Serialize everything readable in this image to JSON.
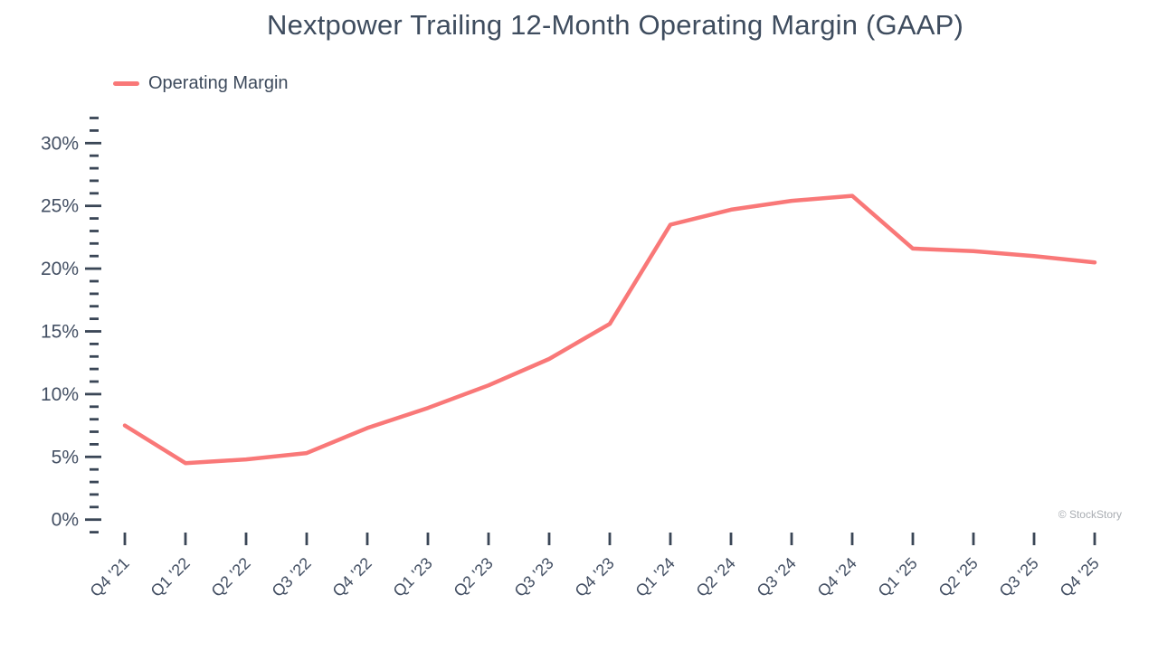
{
  "title": "Nextpower Trailing 12-Month Operating Margin (GAAP)",
  "legend": {
    "label": "Operating Margin"
  },
  "watermark": "© StockStory",
  "colors": {
    "line": "#f97878",
    "tick": "#3a4656",
    "axis_text": "#434f63",
    "watermark": "#a9adb2"
  },
  "chart_data": {
    "type": "line",
    "title": "Nextpower Trailing 12-Month Operating Margin (GAAP)",
    "categories": [
      "Q4 '21",
      "Q1 '22",
      "Q2 '22",
      "Q3 '22",
      "Q4 '22",
      "Q1 '23",
      "Q2 '23",
      "Q3 '23",
      "Q4 '23",
      "Q1 '24",
      "Q2 '24",
      "Q3 '24",
      "Q4 '24",
      "Q1 '25",
      "Q2 '25",
      "Q3 '25",
      "Q4 '25"
    ],
    "series": [
      {
        "name": "Operating Margin",
        "values": [
          7.5,
          4.5,
          4.8,
          5.3,
          7.3,
          8.9,
          10.7,
          12.8,
          15.6,
          23.5,
          24.7,
          25.4,
          25.8,
          21.6,
          21.4,
          21.0,
          20.5
        ]
      }
    ],
    "unit": "%",
    "xlabel": "",
    "ylabel": "",
    "ylim": [
      -1,
      32
    ],
    "y_ticks_major": [
      0,
      5,
      10,
      15,
      20,
      25,
      30
    ],
    "y_minor_step": 1,
    "y_tick_labels": [
      "0%",
      "5%",
      "10%",
      "15%",
      "20%",
      "25%",
      "30%"
    ],
    "grid": false,
    "legend_position": "top-left"
  }
}
